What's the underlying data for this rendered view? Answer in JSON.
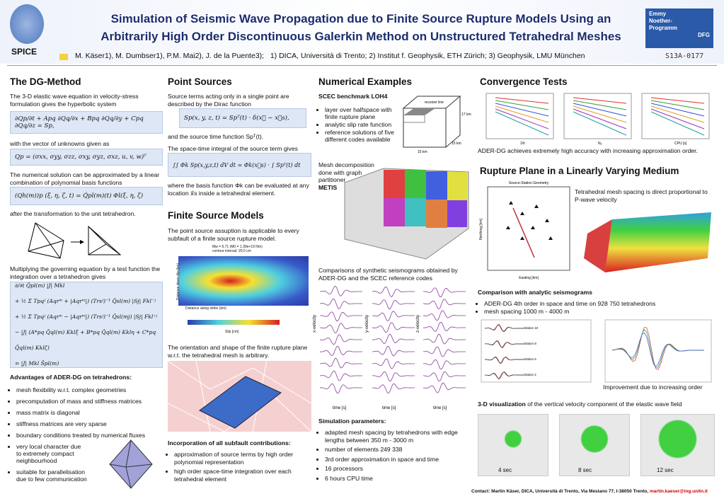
{
  "header": {
    "title": [
      "Simulation of Seismic Wave Propagation due to Finite Source Rupture Models Using an",
      "Arbitrarily High Order Discontinuous Galerkin Method on Unstructured Tetrahedral Meshes"
    ],
    "logo_left": "SPICE",
    "authors": "M. Käser1), M. Dumbser1), P.M. Mai2), J. de la Puente3);",
    "affiliations": "1) DICA, Università di Trento; 2) Institut f. Geophysik, ETH Zürich; 3) Geophysik, LMU München",
    "code": "S13A-0177",
    "logo_right": [
      "Emmy",
      "Noether-",
      "Programm",
      "DFG"
    ]
  },
  "dg_method": {
    "heading": "The DG-Method",
    "p1": "The 3-D elastic wave equation in velocity-stress formulation gives the hyperbolic system",
    "eq1": "∂Qp/∂t + Apq ∂Qq/∂x + Bpq ∂Qq/∂y + Cpq ∂Qq/∂z = Sp,",
    "p2": "with the vector of unknowns given as",
    "eq2": "Qp = (σxx, σyy, σzz, σxy, σyz, σxz, u, v, w)ᵀ",
    "p3": "The numerical solution can be approximated by a linear combination of polynomial basis functions",
    "eq3": "(Qh(m))p (ξ, η, ζ, t) = Q̂pl(m)(t) Φl(ξ, η, ζ)",
    "p4": "after the transformation to the unit tetrahedron.",
    "p5": "Multiplying the governing equation by a test function the integration over a tetrahedron gives",
    "eq4": [
      "∂/∂t Q̂pl(m) |J| Mkl",
      "+ ½ Σ Tpqʲ (Aqrᵐ + |Aqrᵐ|) (Trsʲ)⁻¹ Q̂sl(m) |Sj| Fkl⁻ʲ",
      "+ ½ Σ Tpqʲ (Aqrᵐ − |Aqrᵐ|) (Trsʲ)⁻¹ Q̂sl(mj) |Sj| Fkl⁺ʲ",
      "− |J| (A*pq Q̂ql(m) Kklξ + B*pq Q̂ql(m) Kklη + C*pq Q̂ql(m) Kklζ)",
      "= |J| Mkl Ŝpl(m)"
    ],
    "adv_heading": "Advantages of ADER-DG on tetrahedrons:",
    "advantages": [
      "mesh flexibility w.r.t. complex geometries",
      "precomputation of mass and stiffness matrices",
      "mass matrix is diagonal",
      "stiffness matrices are very sparse",
      "boundary conditions treated by numerical fluxes",
      "very local character due to extremely compact neighbourhood",
      "suitable for parallelisation due to few communication"
    ]
  },
  "point_sources": {
    "heading": "Point Sources",
    "p1": "Source terms acting only in a single point are described by the Dirac function",
    "eq1": "Sp(x, y, z, t) = Spᵀ(t) · δ(x⃗ − x⃗s),",
    "p2": "and the source time function Spᵀ(t).",
    "p3": "The space-time integral of the source term gives",
    "eq2": "∫∫ Φk Sp(x,y,z,t) dV dt = Φk(x⃗s) · ∫ Spᵀ(t) dt",
    "p4": "where the basis function Φk can be evaluated at any location x⃗s inside a tetrahedral element."
  },
  "finite_source": {
    "heading": "Finite Source Models",
    "p1": "The point source assuption is applicable to every subfault of a finite source rupture model.",
    "fig_title": [
      "Mw = 6.71 (M0 = 1.39e+19 Nm)",
      "contour interval: 20.0 cm"
    ],
    "fig_xlabel": "Distance along strike (km)",
    "fig_ylabel": "Distance down dip (km)",
    "colorbar_label": "Slip [cm]",
    "p2": "The orientation and shape of the finite rupture plane w.r.t. the tetrahedral mesh is arbitrary.",
    "contrib_heading": "Incorporation of all subfault contributions:",
    "contributions": [
      "approximation of source terms by high order polynomial representation",
      "high order space-time integration over each tetrahedral element"
    ]
  },
  "numerical": {
    "heading": "Numerical Examples",
    "sub": "SCEC benchmark LOH4",
    "items": [
      "layer over halfspace with finite rupture plane",
      "analytic slip rate function",
      "reference solutions of five different codes available"
    ],
    "box_labels": [
      "receiver line",
      "15 km",
      "15 km",
      "17 km"
    ],
    "mesh_text": [
      "Mesh decomposition",
      "done with graph",
      "partitioner"
    ],
    "mesh_bold": "METIS",
    "caption": "Comparisons of synthetic seismograms obtained by ADER-DG and the SCEC reference codes",
    "seis_ylabels": [
      "x-velocity",
      "y-velocity",
      "z-velocity"
    ],
    "seis_xlabel": "time [s]",
    "sim_heading": "Simulation parameters:",
    "sim": [
      "adapted mesh spacing by tetrahedrons with edge lengths between 350 m - 3000 m",
      "number of elements 249 338",
      "3rd order approximation in space and time",
      "16 processors",
      "6 hours CPU time"
    ]
  },
  "convergence": {
    "heading": "Convergence Tests",
    "xlabels": [
      "1/h",
      "Nₑ",
      "CPU [s]"
    ],
    "caption": "ADER-DG achieves extremely high accuracy with increasing approximation order."
  },
  "rupture": {
    "heading": "Rupture Plane in a Linearly Varying Medium",
    "plot_title": "Source-Station Geometry",
    "plot_xlabel": "Easting [km]",
    "plot_ylabel": "Northing [km]",
    "text": "Tetrahedral mesh spacing is direct proportional to P-wave velocity",
    "comp_heading": "Comparison with analytic seismograms",
    "comp": [
      "ADER-DG 4th order in space and time on 928 750 tetrahedrons",
      "mesh spacing 1000 m - 4000 m"
    ],
    "stations": [
      "Station 10",
      "Station 8",
      "Station 5",
      "Station 2"
    ],
    "comp_caption": "Improvement due to increasing order",
    "vis_bold": "3-D visualization",
    "vis_text": "of the vertical velocity component of the elastic wave field",
    "times": [
      "4 sec",
      "8 sec",
      "12 sec"
    ],
    "contact": "Contact: Martin Käser, DICA, Università di Trento, Via Mesiano 77, I-38050 Trento,",
    "email": "martin.kaeser@ing.unitn.it"
  }
}
